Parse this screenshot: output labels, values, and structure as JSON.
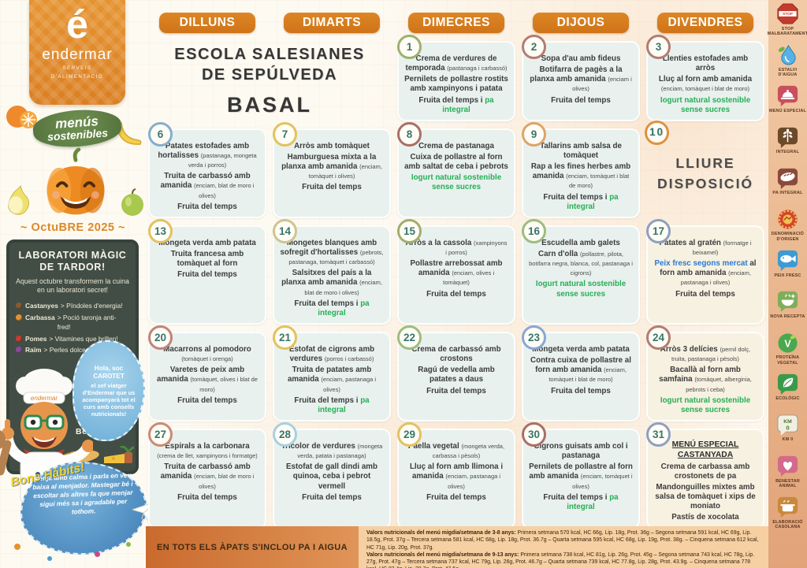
{
  "brand": {
    "logo_letter": "é",
    "logo_word": "endermar",
    "logo_sub1": "SERVEIS",
    "logo_sub2": "D'ALIMENTACIÓ",
    "badge_line1": "menús",
    "badge_line2": "sostenibles",
    "month_title": "~ OctuBRE 2025 ~"
  },
  "left_panel": {
    "board_title": "LABORATORI MÀGIC DE TARDOR!",
    "board_intro": "Aquest octubre transformem la cuina en un laboratori secret!",
    "board_items": [
      {
        "icon": "chestnut-icon",
        "dot": "#8a5a2e",
        "lead": "Castanyes",
        "rest": "> Píndoles d'energia!"
      },
      {
        "icon": "pumpkin-icon",
        "dot": "#e8912d",
        "lead": "Carbassa",
        "rest": "> Poció taronja anti-fred!"
      },
      {
        "icon": "apple-icon",
        "dot": "#cc3b2e",
        "lead": "Pomes",
        "rest": "> Vitamines que brillen!"
      },
      {
        "icon": "grapes-icon",
        "dot": "#8a4a9a",
        "lead": "Raïm",
        "rest": "> Perles dolces de la natura!"
      }
    ],
    "bubble_line1": "Hola, soc CAROTET",
    "bubble_line2": "el xef viatger d'Endermar que us acompanyarà tot el curs amb consells nutricionals!",
    "bon_profit": "Bon profit!",
    "habits_title": "Bons Hàbits!",
    "habits_text": "Menja amb calma i parla en veu baixa al menjador. Mastegar bé i escoltar als altres fa que menjar sigui més sa i agradable per tothom."
  },
  "header": {
    "days": [
      "DILLUNS",
      "DIMARTS",
      "DIMECRES",
      "DIJOUS",
      "DIVENDRES"
    ]
  },
  "school": {
    "line1": "ESCOLA SALESIANES",
    "line2": "DE SEPÚLVEDA",
    "line3": "BASAL"
  },
  "calendar": {
    "weeks": [
      [
        {
          "kind": "school"
        },
        {
          "kind": "day",
          "num": "1",
          "ring": "#9cb071",
          "dishes": [
            [
              {
                "t": "Crema de verdures de temporada "
              },
              {
                "t": "(pastanaga i carbassó)",
                "s": "sm"
              }
            ],
            [
              {
                "t": "Pernilets de pollastre rostits amb xampinyons i patata"
              }
            ],
            [
              {
                "t": "Fruita del temps i "
              },
              {
                "t": "pa integral",
                "s": "g"
              }
            ]
          ]
        },
        {
          "kind": "day",
          "num": "2",
          "ring": "#b27d72",
          "dishes": [
            [
              {
                "t": "Sopa d'au amb fideus"
              }
            ],
            [
              {
                "t": "Botifarra de pagès a la planxa amb amanida "
              },
              {
                "t": "(enciam i olives)",
                "s": "sm"
              }
            ],
            [
              {
                "t": "Fruita del temps"
              }
            ]
          ]
        },
        {
          "kind": "day",
          "num": "3",
          "ring": "#b27d72",
          "dishes": [
            [
              {
                "t": "Llenties estofades amb arròs"
              }
            ],
            [
              {
                "t": "Lluç al forn amb amanida "
              },
              {
                "t": "(enciam, tomàquet i blat de moro)",
                "s": "sm"
              }
            ],
            [
              {
                "t": "Iogurt natural sostenible sense sucres",
                "s": "g"
              }
            ]
          ]
        }
      ],
      [
        {
          "kind": "day",
          "num": "6",
          "ring": "#85aecb",
          "dishes": [
            [
              {
                "t": "Patates estofades amb hortalisses "
              },
              {
                "t": "(pastanaga, mongeta verda i porros)",
                "s": "sm"
              }
            ],
            [
              {
                "t": "Truita de carbassó amb amanida "
              },
              {
                "t": "(enciam, blat de moro i olives)",
                "s": "sm"
              }
            ],
            [
              {
                "t": "Fruita del temps"
              }
            ]
          ]
        },
        {
          "kind": "day",
          "num": "7",
          "ring": "#e3c15f",
          "dishes": [
            [
              {
                "t": "Arròs amb tomàquet"
              }
            ],
            [
              {
                "t": "Hamburguesa mixta a la planxa amb amanida "
              },
              {
                "t": "(enciam, tomàquet i olives)",
                "s": "sm"
              }
            ],
            [
              {
                "t": "Fruita del temps"
              }
            ]
          ]
        },
        {
          "kind": "day",
          "num": "8",
          "ring": "#a96f66",
          "dishes": [
            [
              {
                "t": "Crema de pastanaga"
              }
            ],
            [
              {
                "t": "Cuixa de pollastre al forn amb saltat de ceba i pebrots"
              }
            ],
            [
              {
                "t": "Iogurt natural sostenible sense sucres",
                "s": "g"
              }
            ]
          ]
        },
        {
          "kind": "day",
          "num": "9",
          "ring": "#dba56b",
          "dishes": [
            [
              {
                "t": "Tallarins amb salsa de tomàquet"
              }
            ],
            [
              {
                "t": "Rap a les fines herbes amb amanida "
              },
              {
                "t": "(enciam, tomàquet i blat de moro)",
                "s": "sm"
              }
            ],
            [
              {
                "t": "Fruita del temps i "
              },
              {
                "t": "pa integral",
                "s": "g"
              }
            ]
          ]
        },
        {
          "kind": "free",
          "num": "10",
          "ring": "#e0913f",
          "text": "LLIURE DISPOSICIÓ"
        }
      ],
      [
        {
          "kind": "day",
          "num": "13",
          "ring": "#e3c15f",
          "dishes": [
            [
              {
                "t": "Mongeta verda amb patata"
              }
            ],
            [
              {
                "t": "Truita francesa amb tomàquet al forn"
              }
            ],
            [
              {
                "t": "Fruita del temps"
              }
            ]
          ]
        },
        {
          "kind": "day",
          "num": "14",
          "ring": "#cfc490",
          "dishes": [
            [
              {
                "t": "Mongetes blanques amb sofregit d'hortalisses "
              },
              {
                "t": "(pebrots, pastanaga, tomàquet i carbassó)",
                "s": "sm"
              }
            ],
            [
              {
                "t": "Salsitxes del país a la planxa amb amanida "
              },
              {
                "t": "(enciam, blat de moro i olives)",
                "s": "sm"
              }
            ],
            [
              {
                "t": "Fruita del temps i "
              },
              {
                "t": "pa integral",
                "s": "g"
              }
            ]
          ]
        },
        {
          "kind": "day",
          "num": "15",
          "ring": "#a3ad6e",
          "dishes": [
            [
              {
                "t": "Arròs a la cassola "
              },
              {
                "t": "(xampinyons i porros)",
                "s": "sm"
              }
            ],
            [
              {
                "t": "Pollastre arrebossat amb amanida "
              },
              {
                "t": "(enciam, olives i tomàquet)",
                "s": "sm"
              }
            ],
            [
              {
                "t": "Fruita del temps"
              }
            ]
          ]
        },
        {
          "kind": "day",
          "num": "16",
          "ring": "#9dbd7e",
          "dishes": [
            [
              {
                "t": "Escudella amb galets"
              }
            ],
            [
              {
                "t": "Carn d'olla "
              },
              {
                "t": "(pollastre, pilota, botifarra negra, blanca, col, pastanaga i cigrons)",
                "s": "sm"
              }
            ],
            [
              {
                "t": "Iogurt natural sostenible sense sucres",
                "s": "g"
              }
            ]
          ]
        },
        {
          "kind": "day",
          "num": "17",
          "ring": "#8f9fc0",
          "cream": true,
          "dishes": [
            [
              {
                "t": "Patates al gratén "
              },
              {
                "t": "(formatge i beixamel)",
                "s": "sm"
              }
            ],
            [
              {
                "t": "Peix fresc segons mercat",
                "s": "b"
              },
              {
                "t": " al forn amb amanida "
              },
              {
                "t": "(enciam, pastanaga i olives)",
                "s": "sm"
              }
            ],
            [
              {
                "t": "Fruita del temps"
              }
            ]
          ]
        }
      ],
      [
        {
          "kind": "day",
          "num": "20",
          "ring": "#c4827a",
          "dishes": [
            [
              {
                "t": "Macarrons al pomodoro "
              },
              {
                "t": "(tomàquet i orenga)",
                "s": "sm"
              }
            ],
            [
              {
                "t": "Varetes de peix amb amanida "
              },
              {
                "t": "(tomàquet, olives i blat de moro)",
                "s": "sm"
              }
            ],
            [
              {
                "t": "Fruita del temps"
              }
            ]
          ]
        },
        {
          "kind": "day",
          "num": "21",
          "ring": "#e3c15f",
          "dishes": [
            [
              {
                "t": "Estofat de cigrons amb verdures "
              },
              {
                "t": "(porros i carbassó)",
                "s": "sm"
              }
            ],
            [
              {
                "t": "Truita de patates amb amanida "
              },
              {
                "t": "(enciam, pastanaga i olives)",
                "s": "sm"
              }
            ],
            [
              {
                "t": "Fruita del temps i "
              },
              {
                "t": "pa integral",
                "s": "g"
              }
            ]
          ]
        },
        {
          "kind": "day",
          "num": "22",
          "ring": "#9dbd7e",
          "dishes": [
            [
              {
                "t": "Crema de carbassó amb crostons"
              }
            ],
            [
              {
                "t": "Ragú de vedella amb patates a daus"
              }
            ],
            [
              {
                "t": "Fruita del temps"
              }
            ]
          ]
        },
        {
          "kind": "day",
          "num": "23",
          "ring": "#8aa6d4",
          "dishes": [
            [
              {
                "t": "Mongeta verda amb patata"
              }
            ],
            [
              {
                "t": "Contra cuixa de pollastre al forn amb amanida "
              },
              {
                "t": "(enciam, tomàquet i blat de moro)",
                "s": "sm"
              }
            ],
            [
              {
                "t": "Fruita del temps"
              }
            ]
          ]
        },
        {
          "kind": "day",
          "num": "24",
          "ring": "#b27d72",
          "cream": true,
          "dishes": [
            [
              {
                "t": "Arròs 3 delícies "
              },
              {
                "t": "(pernil dolç, truita, pastanaga i pèsols)",
                "s": "sm"
              }
            ],
            [
              {
                "t": "Bacallà al forn amb samfaina "
              },
              {
                "t": "(tomàquet, alberginia, pebrots i ceba)",
                "s": "sm"
              }
            ],
            [
              {
                "t": "Iogurt natural sostenible sense sucres",
                "s": "g"
              }
            ]
          ]
        }
      ],
      [
        {
          "kind": "day",
          "num": "27",
          "ring": "#cc8a74",
          "dishes": [
            [
              {
                "t": "Espirals a la carbonara "
              },
              {
                "t": "(crema de llet, xampinyons i formatge)",
                "s": "sm"
              }
            ],
            [
              {
                "t": "Truita de carbassó amb amanida "
              },
              {
                "t": "(enciam, blat de moro i olives)",
                "s": "sm"
              }
            ],
            [
              {
                "t": "Fruita del temps"
              }
            ]
          ]
        },
        {
          "kind": "day",
          "num": "28",
          "ring": "#a7d0e3",
          "dishes": [
            [
              {
                "t": "Tricolor de verdures "
              },
              {
                "t": "(mongeta verda, patata i pastanaga)",
                "s": "sm"
              }
            ],
            [
              {
                "t": "Estofat de gall dindi amb quinoa, ceba i pebrot vermell"
              }
            ],
            [
              {
                "t": "Fruita del temps"
              }
            ]
          ]
        },
        {
          "kind": "day",
          "num": "29",
          "ring": "#e3c15f",
          "dishes": [
            [
              {
                "t": "Paella vegetal "
              },
              {
                "t": "(mongeta verda, carbassa i pèsols)",
                "s": "sm"
              }
            ],
            [
              {
                "t": "Lluç al forn amb llimona i amanida "
              },
              {
                "t": "(enciam, pastanaga i olives)",
                "s": "sm"
              }
            ],
            [
              {
                "t": "Fruita del temps"
              }
            ]
          ]
        },
        {
          "kind": "day",
          "num": "30",
          "ring": "#a96f66",
          "dishes": [
            [
              {
                "t": "Cigrons guisats amb col i pastanaga"
              }
            ],
            [
              {
                "t": "Pernilets de pollastre al forn amb amanida "
              },
              {
                "t": "(enciam, tomàquet i olives)",
                "s": "sm"
              }
            ],
            [
              {
                "t": "Fruita del temps i "
              },
              {
                "t": "pa integral",
                "s": "g"
              }
            ]
          ]
        },
        {
          "kind": "day",
          "num": "31",
          "ring": "#8f9fc0",
          "cream": true,
          "special": "MENÚ ESPECIAL CASTANYADA",
          "dishes": [
            [
              {
                "t": "Crema de carbassa amb crostonets de pa"
              }
            ],
            [
              {
                "t": "Mandonguilles mixtes amb salsa de tomàquet i xips de moniato"
              }
            ],
            [
              {
                "t": "Pastís de xocolata"
              }
            ]
          ]
        }
      ]
    ]
  },
  "right_rail": {
    "items": [
      {
        "icon": "stop-sign-icon",
        "label": "STOP MALBARATAMENT"
      },
      {
        "icon": "water-drop-icon",
        "label": "ESTALVI D'AIGUA"
      },
      {
        "icon": "cloche-icon",
        "label": "MENÚ ESPECIAL"
      },
      {
        "icon": "wheat-icon",
        "label": "INTEGRAL"
      },
      {
        "icon": "bread-icon",
        "label": "PA INTEGRAL"
      },
      {
        "icon": "origin-seal-icon",
        "label": "DENOMINACIÓ D'ORIGEN"
      },
      {
        "icon": "fish-icon",
        "label": "PEIX FRESC"
      },
      {
        "icon": "new-recipe-icon",
        "label": "NOVA RECEPTA"
      },
      {
        "icon": "plant-protein-icon",
        "label": "PROTEÏNA VEGETAL"
      },
      {
        "icon": "leaf-icon",
        "label": "ECOLÒGIC"
      },
      {
        "icon": "km0-icon",
        "label": "KM 0"
      },
      {
        "icon": "animal-welfare-icon",
        "label": "BENESTAR ANIMAL"
      },
      {
        "icon": "homemade-icon",
        "label": "ELABORACIÓ CASOLANA"
      }
    ]
  },
  "footer": {
    "note": "EN TOTS ELS ÀPATS S'INCLOU PA I AIGUA",
    "nutrition": [
      {
        "label": "Valors nutricionals del menú migdia/setmana de 3-8 anys:",
        "text": "Primera setmana 570 kcal, HC 66g, Lip. 18g, Prot. 36g – Segona setmana 591 kcal, HC 69g, Lip. 18.5g, Prot. 37g – Tercera setmana 581 kcal, HC 68g, Lip. 18g, Prot. 36.7g – Quarta setmana 595 kcal, HC 68g, Lip. 19g, Prot. 38g. – Cinquena setmana 612 kcal, HC 71g, Lip. 20g, Prot. 37g."
      },
      {
        "label": "Valors nutricionals del menú migdia/setmana de 9-13 anys:",
        "text": "Primera setmana 738 kcal, HC 81g, Lip. 26g, Prot. 45g – Segona setmana 743 kcal, HC 78g, Lip. 27g, Prot. 47g – Tercera setmana 737 kcal, HC 79g, Lip. 26g, Prot. 46.7g – Quarta setmana 739 kcal, HC 77.8g, Lip. 28g, Prot. 43.9g. – Cinquena setmana 778 kcal, HC 82.4g, Lip. 28.7g, Prot. 47.6g."
      }
    ]
  }
}
